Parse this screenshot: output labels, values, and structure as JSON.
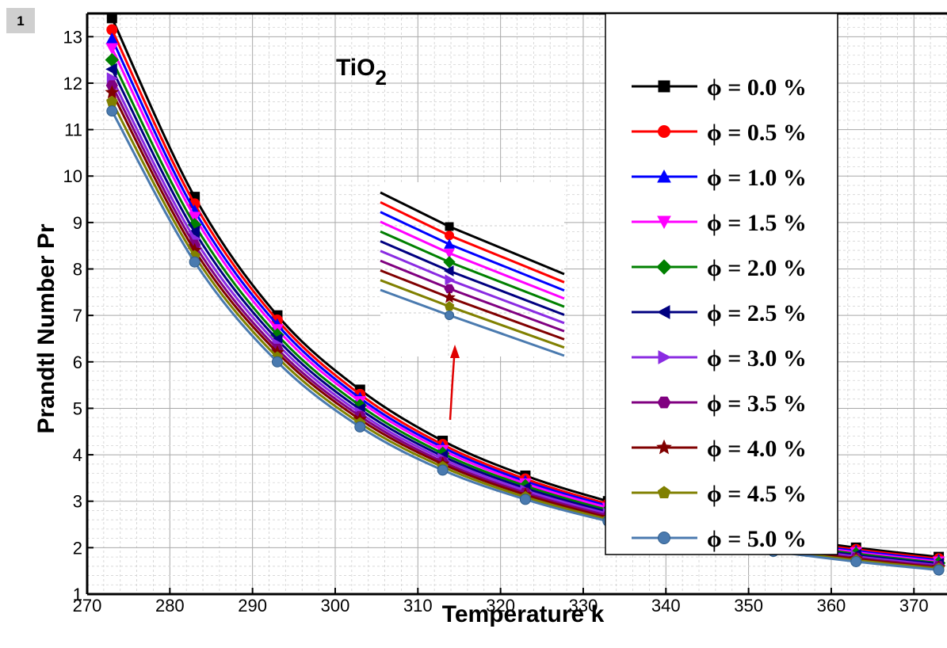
{
  "badge": "1",
  "chart_data": {
    "type": "line",
    "title": "",
    "annotation": {
      "base": "TiO",
      "sub": "2"
    },
    "xlabel": "Temperature k",
    "ylabel": "Prandtl Number Pr",
    "xlim": [
      270,
      374
    ],
    "ylim": [
      1,
      13.5
    ],
    "xticks": [
      270,
      280,
      290,
      300,
      310,
      320,
      330,
      340,
      350,
      360,
      370
    ],
    "yticks": [
      1,
      2,
      3,
      4,
      5,
      6,
      7,
      8,
      9,
      10,
      11,
      12,
      13
    ],
    "grid": true,
    "legend_position": "top-right",
    "x": [
      273,
      283,
      293,
      303,
      313,
      323,
      333,
      343,
      353,
      363,
      373
    ],
    "series": [
      {
        "name": "ϕ = 0.0 %",
        "color": "#000000",
        "marker": "square",
        "values": [
          13.4,
          9.55,
          7.0,
          5.4,
          4.3,
          3.55,
          3.0,
          2.55,
          2.25,
          2.0,
          1.8
        ]
      },
      {
        "name": "ϕ = 0.5 %",
        "color": "#ff0000",
        "marker": "circle",
        "values": [
          13.15,
          9.4,
          6.9,
          5.3,
          4.22,
          3.48,
          2.94,
          2.5,
          2.2,
          1.96,
          1.76
        ]
      },
      {
        "name": "ϕ = 1.0 %",
        "color": "#0000ff",
        "marker": "triangle-up",
        "values": [
          12.95,
          9.25,
          6.8,
          5.22,
          4.16,
          3.43,
          2.9,
          2.46,
          2.17,
          1.93,
          1.73
        ]
      },
      {
        "name": "ϕ = 1.5 %",
        "color": "#ff00ff",
        "marker": "triangle-down",
        "values": [
          12.75,
          9.12,
          6.7,
          5.15,
          4.1,
          3.38,
          2.86,
          2.43,
          2.14,
          1.9,
          1.7
        ]
      },
      {
        "name": "ϕ = 2.0 %",
        "color": "#008000",
        "marker": "diamond",
        "values": [
          12.5,
          8.95,
          6.58,
          5.06,
          4.03,
          3.33,
          2.81,
          2.39,
          2.1,
          1.87,
          1.67
        ]
      },
      {
        "name": "ϕ = 2.5 %",
        "color": "#000080",
        "marker": "triangle-left",
        "values": [
          12.3,
          8.8,
          6.48,
          4.98,
          3.97,
          3.28,
          2.77,
          2.35,
          2.07,
          1.84,
          1.65
        ]
      },
      {
        "name": "ϕ = 3.0 %",
        "color": "#8a2be2",
        "marker": "triangle-right",
        "values": [
          12.1,
          8.65,
          6.38,
          4.9,
          3.91,
          3.23,
          2.73,
          2.32,
          2.04,
          1.81,
          1.62
        ]
      },
      {
        "name": "ϕ = 3.5 %",
        "color": "#800080",
        "marker": "hexagon",
        "values": [
          11.95,
          8.52,
          6.28,
          4.83,
          3.85,
          3.18,
          2.69,
          2.28,
          2.01,
          1.78,
          1.6
        ]
      },
      {
        "name": "ϕ = 4.0 %",
        "color": "#800000",
        "marker": "star",
        "values": [
          11.8,
          8.4,
          6.2,
          4.76,
          3.8,
          3.14,
          2.65,
          2.25,
          1.98,
          1.76,
          1.57
        ]
      },
      {
        "name": "ϕ = 4.5 %",
        "color": "#808000",
        "marker": "pentagon",
        "values": [
          11.6,
          8.28,
          6.1,
          4.68,
          3.74,
          3.09,
          2.61,
          2.22,
          1.95,
          1.73,
          1.55
        ]
      },
      {
        "name": "ϕ = 5.0 %",
        "color": "#4a7aaf",
        "marker": "circle",
        "values": [
          11.4,
          8.15,
          6.0,
          4.6,
          3.67,
          3.04,
          2.57,
          2.18,
          1.92,
          1.7,
          1.52
        ]
      }
    ]
  }
}
